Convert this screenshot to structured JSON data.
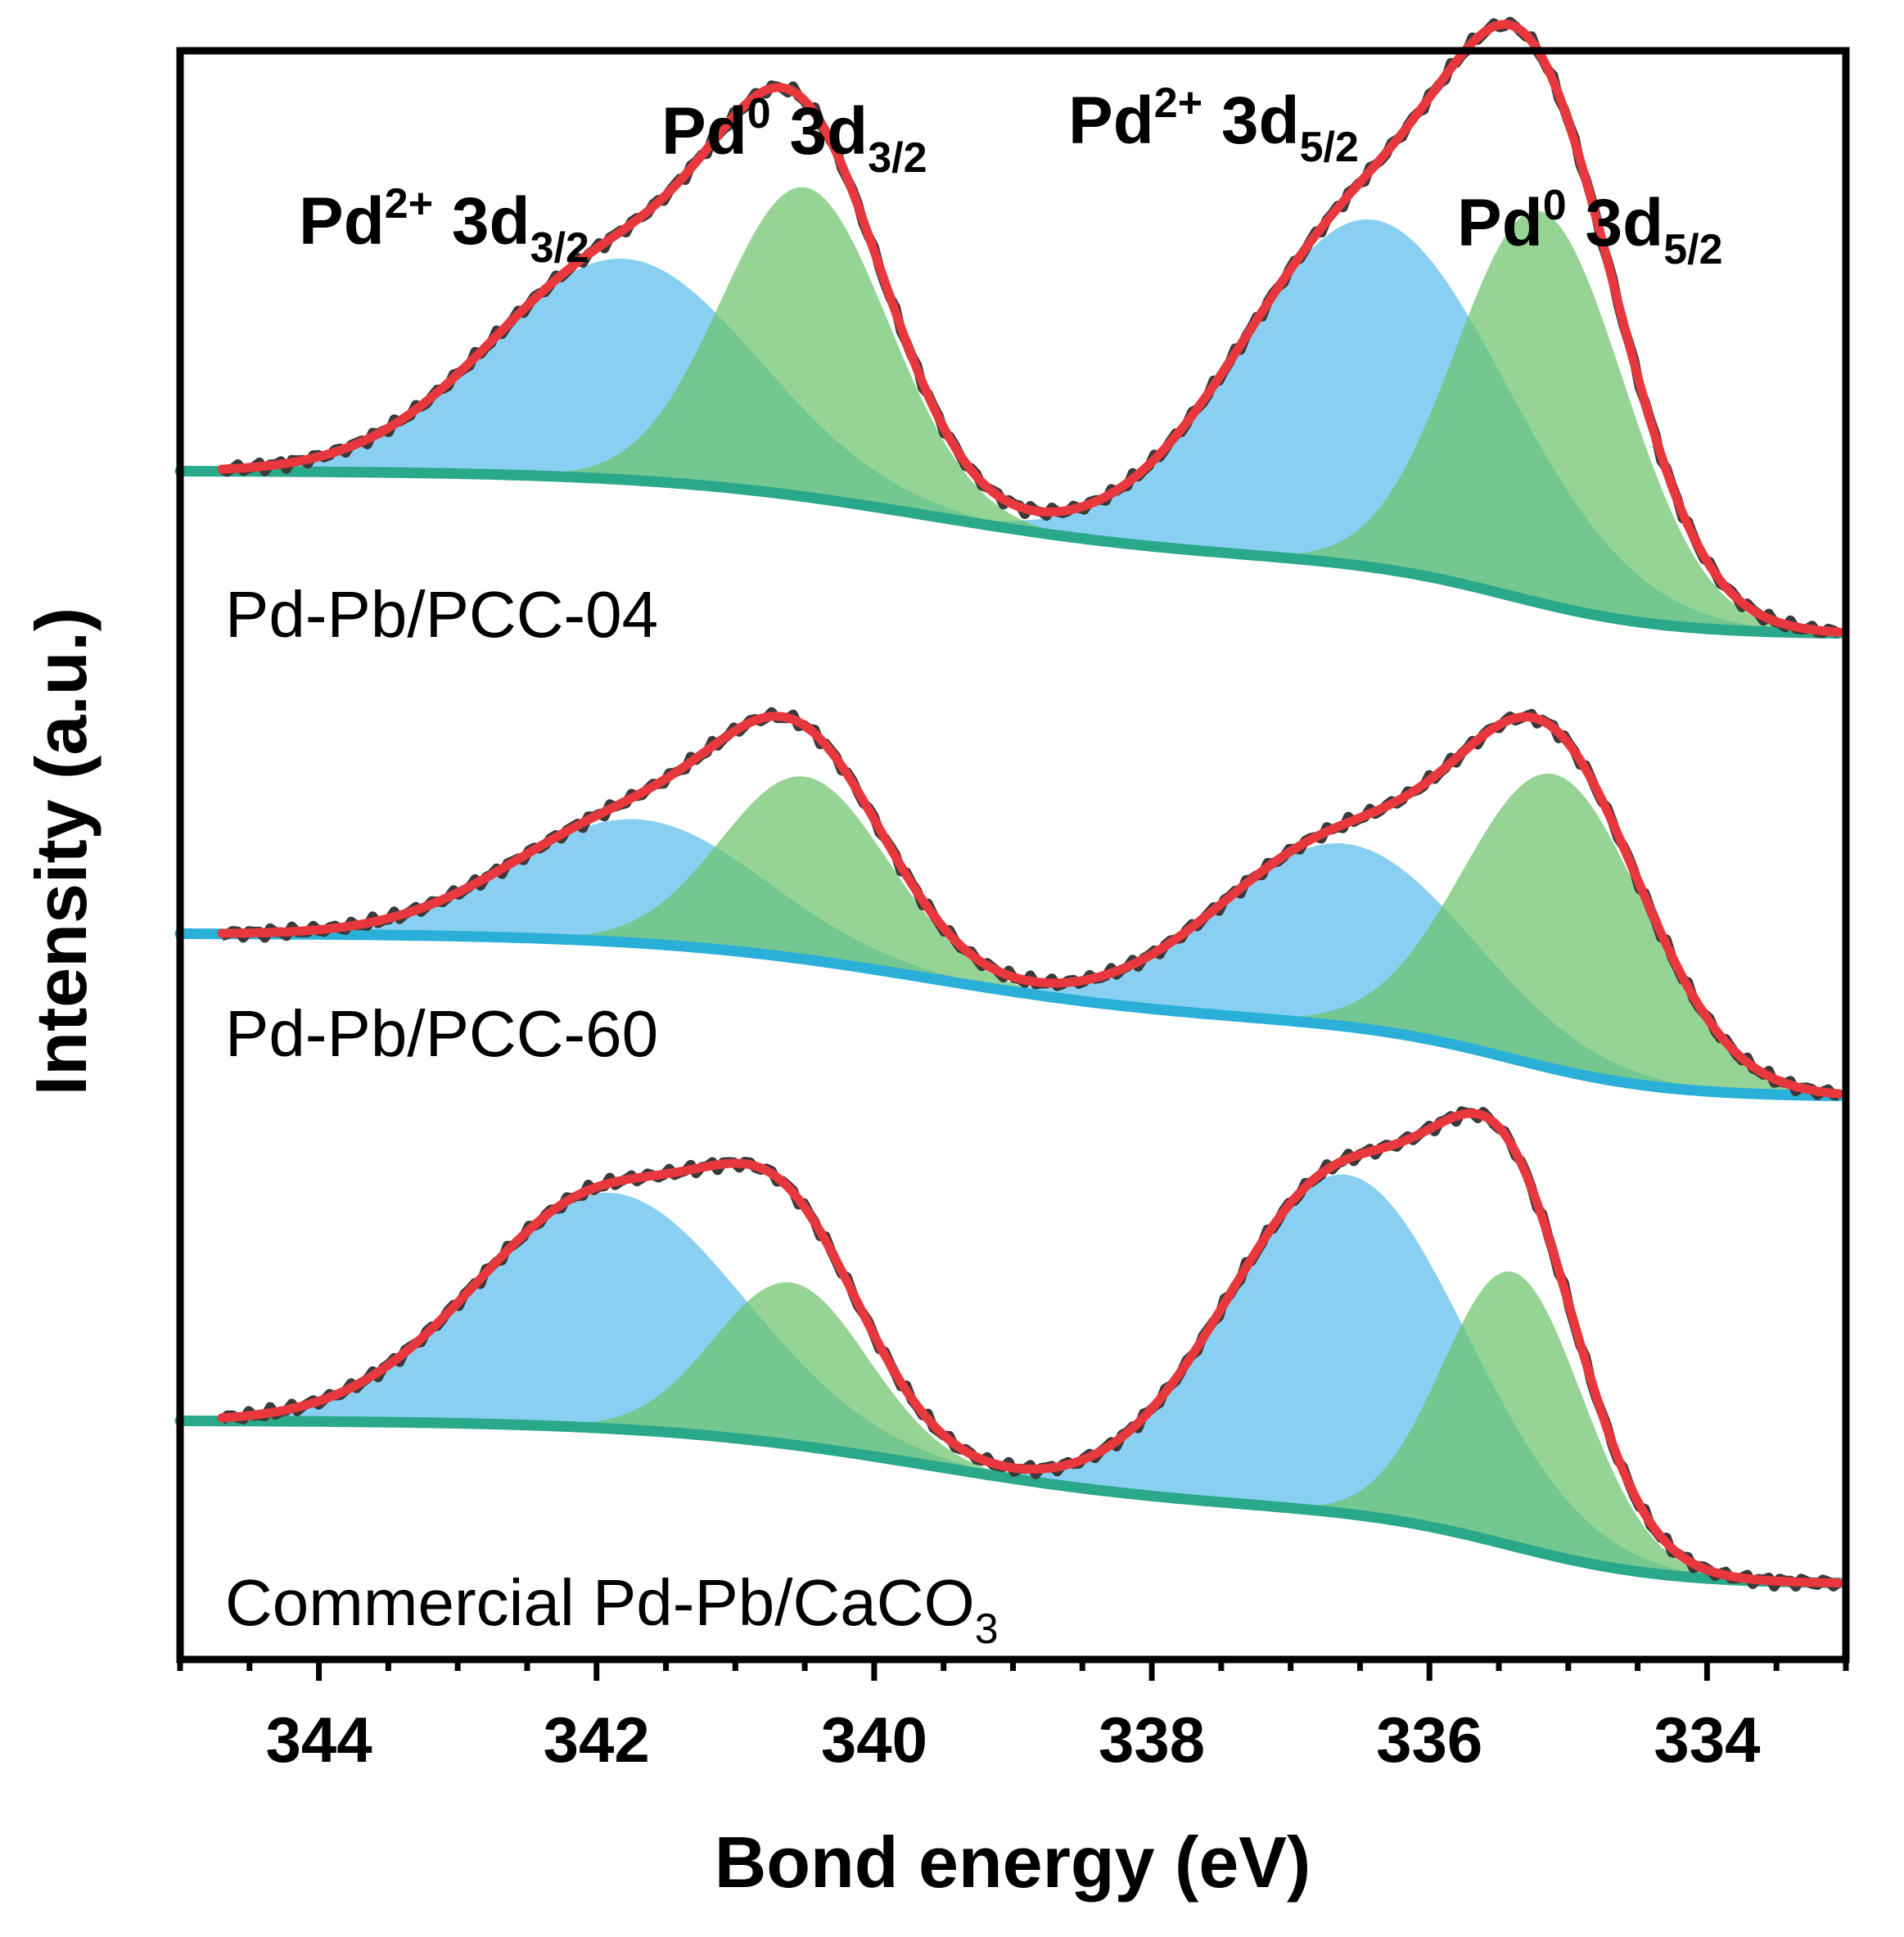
{
  "chart_data": {
    "type": "area",
    "xlabel": "Bond energy (eV)",
    "ylabel": "Intensity (a.u.)",
    "xlim": [
      345,
      333
    ],
    "x_reversed": true,
    "xticks": [
      344,
      342,
      340,
      338,
      336,
      334
    ],
    "xtick_labels": [
      "344",
      "342",
      "340",
      "338",
      "336",
      "334"
    ],
    "grid": false,
    "colors": {
      "Pd2+": "#5bbcec",
      "Pd0": "#6cc46c",
      "fit": "#e8383d",
      "raw": "#3a3a3a",
      "background": "#2aa88a",
      "background_alt": "#2ab0d8"
    },
    "peak_labels": [
      {
        "id": "pd2_32",
        "main": "Pd",
        "sup": "2+",
        "mid": " 3d",
        "sub": "3/2",
        "energy": 342.3
      },
      {
        "id": "pd0_32",
        "main": "Pd",
        "sup": "0",
        "mid": " 3d",
        "sub": "3/2",
        "energy": 340.3
      },
      {
        "id": "pd2_52",
        "main": "Pd",
        "sup": "2+",
        "mid": " 3d",
        "sub": "5/2",
        "energy": 337.3
      },
      {
        "id": "pd0_52",
        "main": "Pd",
        "sup": "0",
        "mid": " 3d",
        "sub": "5/2",
        "energy": 335.0
      }
    ],
    "spectra": [
      {
        "label_main": "Pd-Pb/PCC-04",
        "label_sub": "",
        "offset": 2.3,
        "bg_color": "#2aa88a",
        "peaks": [
          {
            "species": "Pd2+",
            "line": "3d3/2",
            "center": 341.8,
            "width": 0.95,
            "height": 0.75
          },
          {
            "species": "Pd0",
            "line": "3d3/2",
            "center": 340.5,
            "width": 0.6,
            "height": 1.05
          },
          {
            "species": "Pd2+",
            "line": "3d5/2",
            "center": 336.4,
            "width": 0.95,
            "height": 1.18
          },
          {
            "species": "Pd0",
            "line": "3d5/2",
            "center": 335.2,
            "width": 0.6,
            "height": 1.33
          }
        ]
      },
      {
        "label_main": "Pd-Pb/PCC-60",
        "label_sub": "",
        "offset": 1.16,
        "bg_color": "#2ab0d8",
        "peaks": [
          {
            "species": "Pd2+",
            "line": "3d3/2",
            "center": 341.7,
            "width": 0.9,
            "height": 0.42
          },
          {
            "species": "Pd0",
            "line": "3d3/2",
            "center": 340.5,
            "width": 0.6,
            "height": 0.62
          },
          {
            "species": "Pd2+",
            "line": "3d5/2",
            "center": 336.6,
            "width": 0.9,
            "height": 0.62
          },
          {
            "species": "Pd0",
            "line": "3d5/2",
            "center": 335.1,
            "width": 0.65,
            "height": 1.0
          }
        ]
      },
      {
        "label_main": "Commercial Pd-Pb/CaCO",
        "label_sub": "3",
        "offset": 0.0,
        "bg_color": "#2aa88a",
        "peaks": [
          {
            "species": "Pd2+",
            "line": "3d3/2",
            "center": 341.9,
            "width": 0.95,
            "height": 0.8
          },
          {
            "species": "Pd0",
            "line": "3d3/2",
            "center": 340.6,
            "width": 0.55,
            "height": 0.55
          },
          {
            "species": "Pd2+",
            "line": "3d5/2",
            "center": 336.6,
            "width": 0.85,
            "height": 1.15
          },
          {
            "species": "Pd0",
            "line": "3d5/2",
            "center": 335.4,
            "width": 0.5,
            "height": 0.93
          }
        ]
      }
    ]
  }
}
